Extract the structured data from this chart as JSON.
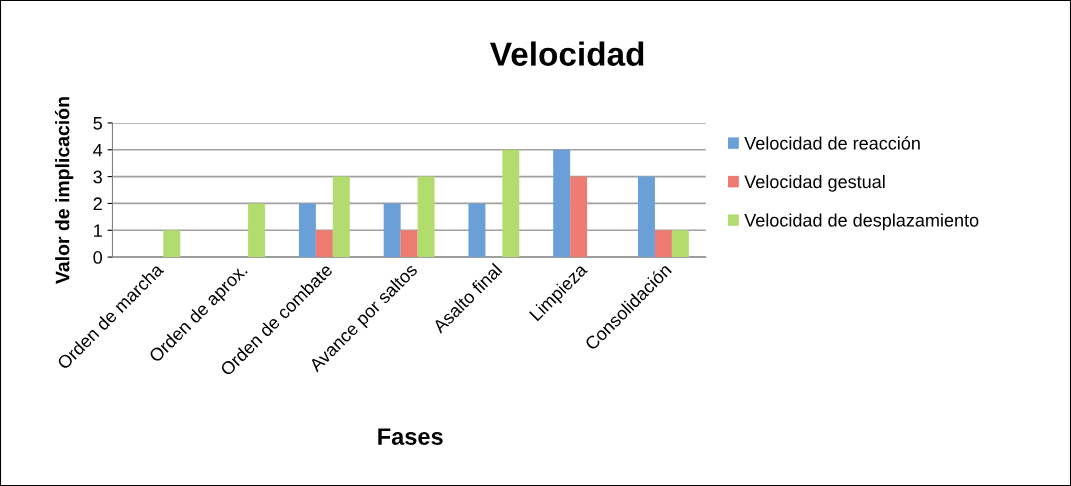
{
  "chart_data": {
    "type": "bar",
    "title": "Velocidad",
    "xlabel": "Fases",
    "ylabel": "Valor de implicación",
    "categories": [
      "Orden de marcha",
      "Orden de aprox.",
      "Orden de combate",
      "Avance por saltos",
      "Asalto final",
      "Limpieza",
      "Consolidación"
    ],
    "series": [
      {
        "name": "Velocidad de reacción",
        "color": "#6a9fd8",
        "values": [
          0,
          0,
          2,
          2,
          2,
          4,
          3
        ]
      },
      {
        "name": "Velocidad gestual",
        "color": "#ee7b72",
        "values": [
          0,
          0,
          1,
          1,
          0,
          3,
          1
        ]
      },
      {
        "name": "Velocidad de desplazamiento",
        "color": "#b2dd6e",
        "values": [
          1,
          2,
          3,
          3,
          4,
          0,
          1
        ]
      }
    ],
    "ylim": [
      0,
      5
    ],
    "yticks": [
      0,
      1,
      2,
      3,
      4,
      5
    ],
    "grid": "y",
    "legend": "right"
  }
}
